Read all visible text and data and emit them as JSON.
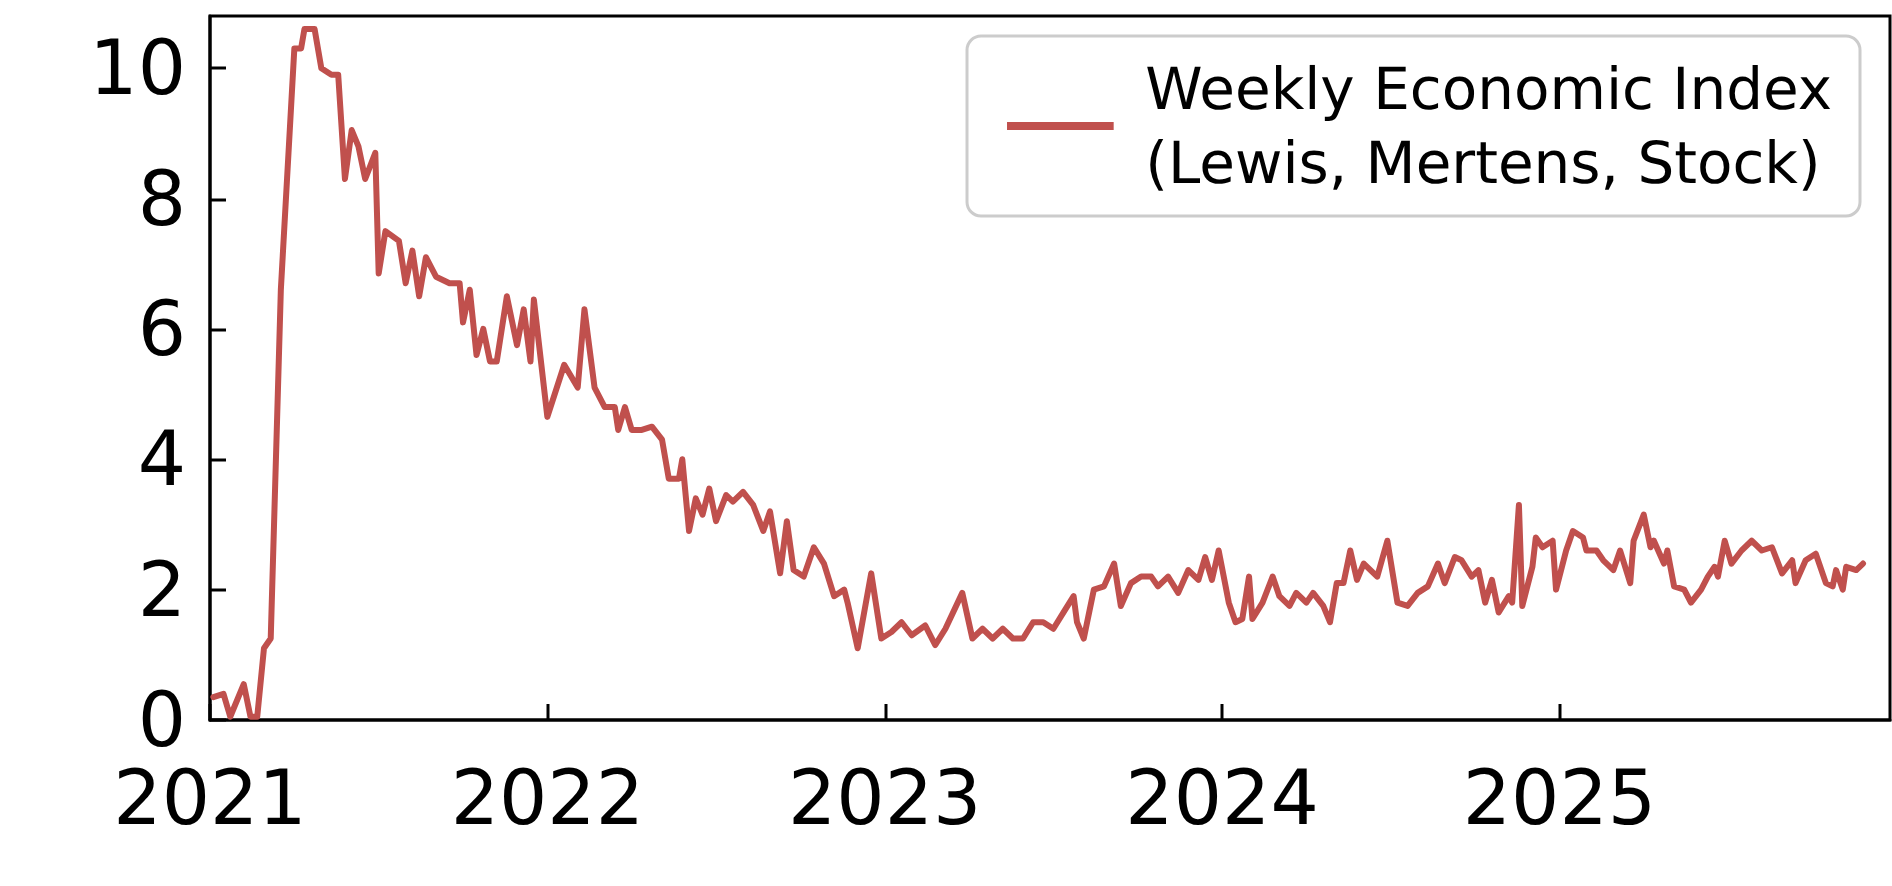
{
  "chart_data": {
    "type": "line",
    "xlim": [
      2021,
      2025.98
    ],
    "xticks": [
      2021,
      2022,
      2023,
      2024,
      2025
    ],
    "ylim": [
      0,
      10.8
    ],
    "yticks": [
      0,
      2,
      4,
      6,
      8,
      10
    ],
    "grid": false,
    "legend": "top right",
    "marker": "none",
    "line_style": "solid",
    "series": [
      {
        "name": "Weekly Economic Index\n(Lewis, Mertens, Stock)",
        "color": "#c0504d",
        "x": [
          2021.01,
          2021.04,
          2021.06,
          2021.1,
          2021.12,
          2021.14,
          2021.16,
          2021.18,
          2021.21,
          2021.25,
          2021.27,
          2021.28,
          2021.31,
          2021.33,
          2021.36,
          2021.38,
          2021.4,
          2021.42,
          2021.44,
          2021.46,
          2021.49,
          2021.5,
          2021.52,
          2021.56,
          2021.58,
          2021.6,
          2021.62,
          2021.64,
          2021.67,
          2021.71,
          2021.74,
          2021.75,
          2021.77,
          2021.79,
          2021.81,
          2021.83,
          2021.85,
          2021.88,
          2021.91,
          2021.93,
          2021.95,
          2021.96,
          2022.0,
          2022.02,
          2022.05,
          2022.09,
          2022.11,
          2022.14,
          2022.17,
          2022.2,
          2022.21,
          2022.23,
          2022.25,
          2022.28,
          2022.31,
          2022.34,
          2022.36,
          2022.39,
          2022.4,
          2022.42,
          2022.44,
          2022.46,
          2022.48,
          2022.5,
          2022.53,
          2022.55,
          2022.58,
          2022.61,
          2022.64,
          2022.66,
          2022.69,
          2022.71,
          2022.73,
          2022.76,
          2022.79,
          2022.82,
          2022.85,
          2022.88,
          2022.89,
          2022.92,
          2022.96,
          2022.99,
          2023.02,
          2023.05,
          2023.08,
          2023.12,
          2023.15,
          2023.18,
          2023.23,
          2023.26,
          2023.29,
          2023.32,
          2023.35,
          2023.38,
          2023.41,
          2023.44,
          2023.47,
          2023.5,
          2023.53,
          2023.56,
          2023.57,
          2023.59,
          2023.62,
          2023.65,
          2023.68,
          2023.7,
          2023.73,
          2023.76,
          2023.79,
          2023.81,
          2023.84,
          2023.87,
          2023.9,
          2023.93,
          2023.95,
          2023.97,
          2023.99,
          2024.02,
          2024.04,
          2024.06,
          2024.08,
          2024.09,
          2024.12,
          2024.15,
          2024.17,
          2024.2,
          2024.22,
          2024.25,
          2024.27,
          2024.3,
          2024.32,
          2024.34,
          2024.36,
          2024.38,
          2024.4,
          2024.42,
          2024.46,
          2024.49,
          2024.52,
          2024.55,
          2024.58,
          2024.61,
          2024.64,
          2024.66,
          2024.69,
          2024.71,
          2024.74,
          2024.76,
          2024.78,
          2024.8,
          2024.82,
          2024.85,
          2024.86,
          2024.88,
          2024.89,
          2024.92,
          2024.93,
          2024.95,
          2024.98,
          2024.99,
          2025.02,
          2025.04,
          2025.07,
          2025.08,
          2025.11,
          2025.13,
          2025.16,
          2025.18,
          2025.21,
          2025.22,
          2025.25,
          2025.27,
          2025.28,
          2025.31,
          2025.32,
          2025.34,
          2025.37,
          2025.39,
          2025.42,
          2025.44,
          2025.46,
          2025.47,
          2025.49,
          2025.51,
          2025.54,
          2025.57,
          2025.6,
          2025.63,
          2025.66,
          2025.69,
          2025.7,
          2025.73,
          2025.76,
          2025.79,
          2025.81,
          2025.82,
          2025.84,
          2025.85,
          2025.88,
          2025.9
        ],
        "values": [
          0.35,
          0.4,
          0.05,
          0.55,
          0.05,
          0.05,
          1.1,
          1.25,
          6.6,
          10.3,
          10.3,
          10.6,
          10.6,
          10.0,
          9.9,
          9.9,
          8.3,
          9.05,
          8.8,
          8.3,
          8.7,
          6.85,
          7.5,
          7.35,
          6.7,
          7.2,
          6.5,
          7.1,
          6.8,
          6.7,
          6.7,
          6.1,
          6.6,
          5.6,
          6.0,
          5.5,
          5.5,
          6.5,
          5.75,
          6.3,
          5.5,
          6.45,
          4.65,
          4.97,
          5.45,
          5.1,
          6.3,
          5.1,
          4.8,
          4.8,
          4.45,
          4.8,
          4.45,
          4.45,
          4.5,
          4.3,
          3.7,
          3.7,
          4.0,
          2.9,
          3.4,
          3.15,
          3.55,
          3.05,
          3.45,
          3.35,
          3.5,
          3.3,
          2.9,
          3.2,
          2.25,
          3.05,
          2.3,
          2.2,
          2.65,
          2.4,
          1.9,
          2.0,
          1.8,
          1.1,
          2.25,
          1.25,
          1.35,
          1.5,
          1.3,
          1.45,
          1.15,
          1.4,
          1.95,
          1.25,
          1.4,
          1.25,
          1.4,
          1.25,
          1.25,
          1.5,
          1.5,
          1.4,
          1.65,
          1.9,
          1.5,
          1.25,
          2.0,
          2.05,
          2.4,
          1.75,
          2.1,
          2.2,
          2.2,
          2.05,
          2.2,
          1.95,
          2.3,
          2.15,
          2.5,
          2.15,
          2.6,
          1.8,
          1.5,
          1.55,
          2.2,
          1.55,
          1.8,
          2.2,
          1.9,
          1.75,
          1.95,
          1.8,
          1.95,
          1.75,
          1.5,
          2.1,
          2.1,
          2.6,
          2.15,
          2.4,
          2.2,
          2.75,
          1.8,
          1.75,
          1.95,
          2.05,
          2.4,
          2.1,
          2.5,
          2.45,
          2.2,
          2.3,
          1.8,
          2.15,
          1.65,
          1.9,
          1.8,
          3.3,
          1.75,
          2.35,
          2.8,
          2.65,
          2.75,
          2.0,
          2.6,
          2.9,
          2.8,
          2.6,
          2.6,
          2.45,
          2.3,
          2.6,
          2.1,
          2.75,
          3.15,
          2.65,
          2.75,
          2.4,
          2.6,
          2.05,
          2.0,
          1.8,
          2.0,
          2.2,
          2.35,
          2.2,
          2.75,
          2.4,
          2.6,
          2.75,
          2.6,
          2.65,
          2.25,
          2.45,
          2.1,
          2.45,
          2.55,
          2.1,
          2.05,
          2.3,
          2.0,
          2.35,
          2.3,
          2.4
        ]
      }
    ]
  }
}
